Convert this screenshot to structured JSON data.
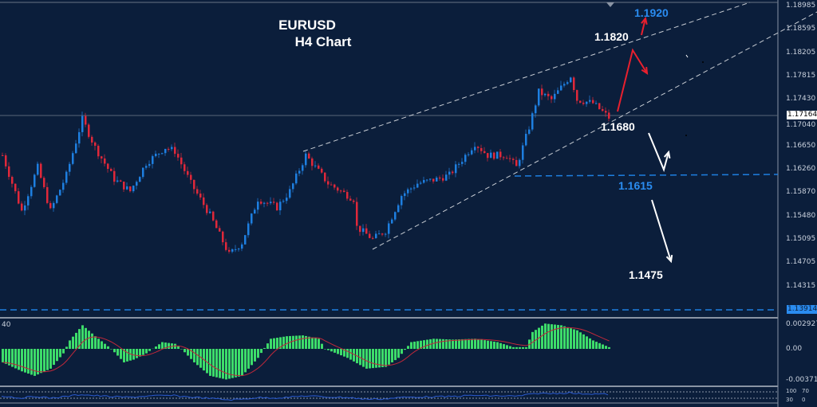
{
  "chart_data": {
    "type": "candlestick",
    "symbol": "EURUSD",
    "timeframe_label": "H4 Chart",
    "colors": {
      "background": "#0b1e3b",
      "bull": "#1e7fe0",
      "bear": "#e0283a",
      "macd_hist": "#3ddc6a",
      "macd_signal": "#c0283a"
    },
    "price_axis": {
      "ticks": [
        "1.18985",
        "1.18595",
        "1.18205",
        "1.17815",
        "1.17430",
        "1.17040",
        "1.16650",
        "1.16260",
        "1.15870",
        "1.15480",
        "1.15095",
        "1.14705",
        "1.14315"
      ],
      "range": [
        1.1375,
        1.1906
      ]
    },
    "current_price": "1.17164",
    "level_line_price": "1.13914",
    "price_path_approx": [
      {
        "bar": 0,
        "price": 1.1647
      },
      {
        "bar": 6,
        "price": 1.1554
      },
      {
        "bar": 11,
        "price": 1.1627
      },
      {
        "bar": 15,
        "price": 1.1554
      },
      {
        "bar": 20,
        "price": 1.1614
      },
      {
        "bar": 25,
        "price": 1.1707
      },
      {
        "bar": 29,
        "price": 1.166
      },
      {
        "bar": 35,
        "price": 1.1607
      },
      {
        "bar": 40,
        "price": 1.1587
      },
      {
        "bar": 45,
        "price": 1.1634
      },
      {
        "bar": 51,
        "price": 1.166
      },
      {
        "bar": 54,
        "price": 1.1654
      },
      {
        "bar": 59,
        "price": 1.16
      },
      {
        "bar": 65,
        "price": 1.1547
      },
      {
        "bar": 71,
        "price": 1.1481
      },
      {
        "bar": 75,
        "price": 1.1501
      },
      {
        "bar": 80,
        "price": 1.1574
      },
      {
        "bar": 86,
        "price": 1.156
      },
      {
        "bar": 90,
        "price": 1.1587
      },
      {
        "bar": 95,
        "price": 1.1647
      },
      {
        "bar": 102,
        "price": 1.16
      },
      {
        "bar": 110,
        "price": 1.1574
      },
      {
        "bar": 111,
        "price": 1.1527
      },
      {
        "bar": 116,
        "price": 1.1507
      },
      {
        "bar": 120,
        "price": 1.1521
      },
      {
        "bar": 125,
        "price": 1.158
      },
      {
        "bar": 130,
        "price": 1.16
      },
      {
        "bar": 136,
        "price": 1.1607
      },
      {
        "bar": 140,
        "price": 1.1614
      },
      {
        "bar": 144,
        "price": 1.164
      },
      {
        "bar": 148,
        "price": 1.1667
      },
      {
        "bar": 152,
        "price": 1.1647
      },
      {
        "bar": 158,
        "price": 1.1647
      },
      {
        "bar": 161,
        "price": 1.1627
      },
      {
        "bar": 165,
        "price": 1.1694
      },
      {
        "bar": 168,
        "price": 1.1753
      },
      {
        "bar": 172,
        "price": 1.174
      },
      {
        "bar": 175,
        "price": 1.176
      },
      {
        "bar": 178,
        "price": 1.178
      },
      {
        "bar": 180,
        "price": 1.174
      },
      {
        "bar": 185,
        "price": 1.1734
      },
      {
        "bar": 190,
        "price": 1.171
      }
    ],
    "annotations": [
      {
        "text": "1.1920",
        "color": "#2a8cf0"
      },
      {
        "text": "1.1820",
        "color": "#ffffff"
      },
      {
        "text": "1.1680",
        "color": "#ffffff"
      },
      {
        "text": "1.1615",
        "color": "#2a8cf0"
      },
      {
        "text": "1.1475",
        "color": "#ffffff"
      }
    ],
    "macd": {
      "label": "40",
      "axis_ticks": [
        "0.002927",
        "0.00",
        "-0.003714"
      ],
      "range": [
        -0.003714,
        0.002927
      ],
      "hist_approx": [
        {
          "bar": 0,
          "v": -0.0015
        },
        {
          "bar": 6,
          "v": -0.0025
        },
        {
          "bar": 10,
          "v": -0.003
        },
        {
          "bar": 15,
          "v": -0.0022
        },
        {
          "bar": 19,
          "v": -0.0005
        },
        {
          "bar": 21,
          "v": 0.001
        },
        {
          "bar": 25,
          "v": 0.0028
        },
        {
          "bar": 29,
          "v": 0.0015
        },
        {
          "bar": 34,
          "v": 0
        },
        {
          "bar": 38,
          "v": -0.0015
        },
        {
          "bar": 41,
          "v": -0.0012
        },
        {
          "bar": 45,
          "v": -0.0005
        },
        {
          "bar": 50,
          "v": 0.0008
        },
        {
          "bar": 54,
          "v": 0.0006
        },
        {
          "bar": 56,
          "v": 0
        },
        {
          "bar": 60,
          "v": -0.0015
        },
        {
          "bar": 65,
          "v": -0.003
        },
        {
          "bar": 70,
          "v": -0.0034
        },
        {
          "bar": 75,
          "v": -0.003
        },
        {
          "bar": 80,
          "v": -0.001
        },
        {
          "bar": 84,
          "v": 0.0012
        },
        {
          "bar": 89,
          "v": 0.0015
        },
        {
          "bar": 94,
          "v": 0.0016
        },
        {
          "bar": 99,
          "v": 0.0012
        },
        {
          "bar": 101,
          "v": 0
        },
        {
          "bar": 108,
          "v": -0.001
        },
        {
          "bar": 114,
          "v": -0.0022
        },
        {
          "bar": 120,
          "v": -0.002
        },
        {
          "bar": 124,
          "v": -0.001
        },
        {
          "bar": 128,
          "v": 0.0008
        },
        {
          "bar": 135,
          "v": 0.0012
        },
        {
          "bar": 141,
          "v": 0.0011
        },
        {
          "bar": 148,
          "v": 0.0012
        },
        {
          "bar": 155,
          "v": 0.0008
        },
        {
          "bar": 160,
          "v": 0.0002
        },
        {
          "bar": 164,
          "v": 0.0002
        },
        {
          "bar": 166,
          "v": 0.002
        },
        {
          "bar": 170,
          "v": 0.003
        },
        {
          "bar": 175,
          "v": 0.0028
        },
        {
          "bar": 180,
          "v": 0.0022
        },
        {
          "bar": 185,
          "v": 0.001
        },
        {
          "bar": 190,
          "v": 0.0002
        }
      ]
    },
    "oscillator": {
      "axis_ticks": [
        "100",
        "70",
        "30",
        "0"
      ]
    }
  }
}
